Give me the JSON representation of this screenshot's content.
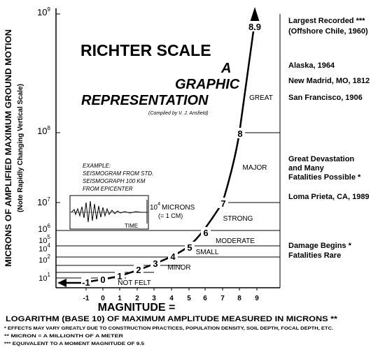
{
  "title": "RICHTER SCALE",
  "subtitle": [
    "A",
    "GRAPHIC",
    "REPRESENTATION"
  ],
  "credit": "(Compiled by V. J. Ansfield)",
  "y_axis": {
    "title": "MICRONS OF AMPLIFIED MAXIMUM GROUND MOTION",
    "note": "(Note Rapidly Changing Vertical Scale)",
    "labels": [
      {
        "base": "10",
        "exp": "9"
      },
      {
        "base": "10",
        "exp": "8"
      },
      {
        "base": "10",
        "exp": "7"
      },
      {
        "base": "10",
        "exp": "6"
      },
      {
        "base": "10",
        "exp": "5"
      },
      {
        "base": "10",
        "exp": "4"
      },
      {
        "base": "10",
        "exp": "2"
      },
      {
        "base": "10",
        "exp": "1"
      }
    ]
  },
  "x_axis": {
    "ticks": [
      "-1",
      "0",
      "1",
      "2",
      "3",
      "4",
      "5",
      "6",
      "7",
      "8",
      "9"
    ],
    "title": "MAGNITUDE =",
    "subtitle": "LOGARITHM (BASE 10) OF MAXIMUM AMPLITUDE MEASURED IN MICRONS **"
  },
  "curve_labels": [
    "-1",
    "0",
    "1",
    "2",
    "3",
    "4",
    "5",
    "6",
    "7",
    "8",
    "8.9"
  ],
  "bands": [
    "GREAT",
    "MAJOR",
    "STRONG",
    "MODERATE",
    "SMALL",
    "MINOR",
    "NOT FELT"
  ],
  "events": [
    "Largest Recorded ***",
    "(Offshore Chile, 1960)",
    "Alaska, 1964",
    "New Madrid, MO, 1812",
    "San Francisco, 1906",
    "Great Devastation",
    "and Many",
    "Fatalities Possible *",
    "Loma Prieta, CA,  1989",
    "Damage Begins  *",
    "Fatalities Rare"
  ],
  "inset": {
    "lines": [
      "EXAMPLE:",
      "SEISMOGRAM FROM STD.",
      "SEISMOGRAPH 100 KM",
      "FROM EPICENTER"
    ],
    "amplitude": {
      "base": "10",
      "exp": "4",
      "unit": "MICRONS"
    },
    "equiv": "(= 1 CM)",
    "time": "TIME"
  },
  "footnotes": [
    "* EFFECTS MAY VARY GREATLY DUE TO CONSTRUCTION PRACTICES, POPULATION DENSITY, SOIL DEPTH, FOCAL DEPTH, ETC.",
    "** MICRON = A MILLIONTH OF A METER",
    "*** EQUIVALENT TO A MOMENT MAGNITUDE OF 9.5"
  ]
}
